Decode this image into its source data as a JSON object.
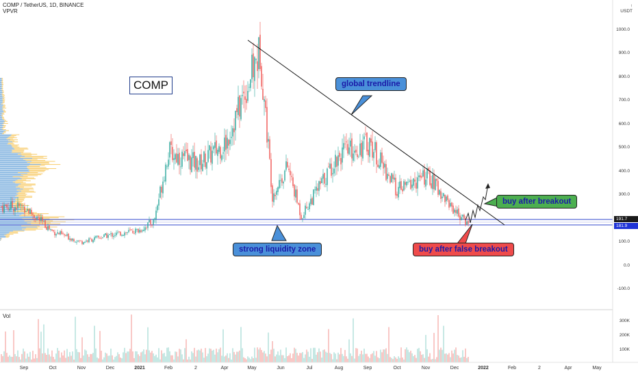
{
  "header": {
    "symbol_line": "COMP / TetherUS, 1D, BINANCE",
    "indicator": "VPVR",
    "currency": "USDT",
    "vol_label": "Vol"
  },
  "annotations": {
    "ticker_box": "COMP",
    "global_trendline": "global trendline",
    "strong_liquidity_zone": "strong liquidity zone",
    "buy_after_breakout": "buy after breakout",
    "buy_after_false_breakout": "buy after false breakout"
  },
  "price_tags": {
    "upper": "191.7",
    "lower": "181.9"
  },
  "colors": {
    "up": "#26a69a",
    "down": "#ef5350",
    "vpvr_blue": "#5b9bd5",
    "vpvr_orange": "#f5c04a",
    "zone_line": "#5b6cd6",
    "callout_blue": "#4a90d9",
    "callout_green": "#4caf50",
    "callout_red": "#ef4b4b"
  },
  "chart_data": {
    "type": "candlestick",
    "title": "COMP / TetherUS, 1D, BINANCE",
    "y_axis_ticks": [
      "1000.0",
      "900.0",
      "800.0",
      "700.0",
      "600.0",
      "500.0",
      "400.0",
      "300.0",
      "200.0",
      "100.0",
      "0.0",
      "-100.0"
    ],
    "volume_axis_ticks": [
      "300K",
      "200K",
      "100K"
    ],
    "x_axis_ticks": [
      "Sep",
      "Oct",
      "Nov",
      "Dec",
      "2021",
      "Feb",
      "Mar",
      "Apr",
      "May",
      "Jun",
      "Jul",
      "Aug",
      "Sep",
      "Oct",
      "Nov",
      "Dec",
      "2022",
      "Feb",
      "Mar",
      "Apr",
      "May"
    ],
    "x_axis_tick_labels": [
      "Sep",
      "Oct",
      "Nov",
      "Dec",
      "2021",
      "Feb",
      "2",
      "Apr",
      "May",
      "Jun",
      "Jul",
      "Aug",
      "Sep",
      "Oct",
      "Nov",
      "Dec",
      "2022",
      "Feb",
      "2",
      "Apr",
      "May"
    ],
    "ylim": [
      -130,
      1100
    ],
    "price_path": [
      {
        "t": "Sep 2020",
        "v": 250
      },
      {
        "t": "Oct 2020",
        "v": 145
      },
      {
        "t": "Nov 2020",
        "v": 100
      },
      {
        "t": "Dec 2020",
        "v": 130
      },
      {
        "t": "2021",
        "v": 150
      },
      {
        "t": "Jan 2021 mid",
        "v": 190
      },
      {
        "t": "Feb 2021",
        "v": 480
      },
      {
        "t": "Mar 2021",
        "v": 430
      },
      {
        "t": "Apr 2021",
        "v": 520
      },
      {
        "t": "May 2021 peak",
        "v": 910
      },
      {
        "t": "May 2021 low",
        "v": 300
      },
      {
        "t": "Jun 2021",
        "v": 420
      },
      {
        "t": "Jul 2021",
        "v": 210
      },
      {
        "t": "Aug 2021",
        "v": 470
      },
      {
        "t": "Sep 2021",
        "v": 520
      },
      {
        "t": "Oct 2021",
        "v": 320
      },
      {
        "t": "Nov 2021",
        "v": 380
      },
      {
        "t": "Dec 2021",
        "v": 250
      },
      {
        "t": "Dec 2021 end",
        "v": 185
      }
    ],
    "trendline": {
      "from": {
        "t": "May 2021",
        "v": 950
      },
      "to": {
        "t": "Jan 2022",
        "v": 170
      }
    },
    "liquidity_zone": [
      181.9,
      191.7
    ]
  }
}
